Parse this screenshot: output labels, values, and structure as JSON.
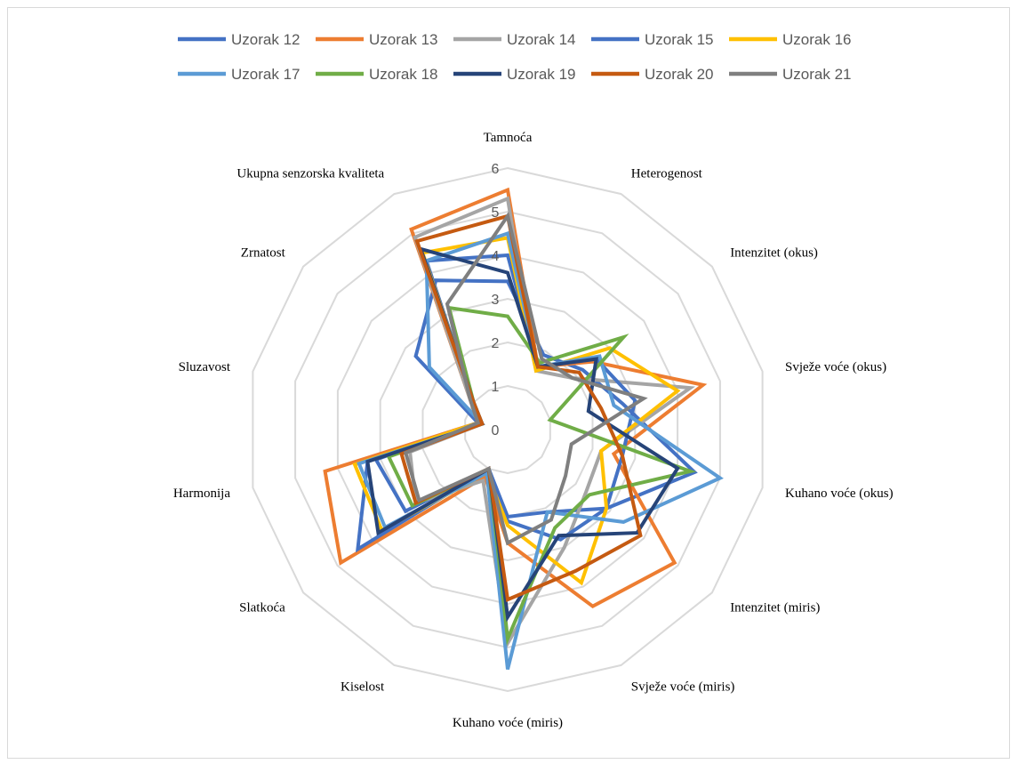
{
  "chart_data": {
    "type": "radar",
    "title": "",
    "categories": [
      "Tamnoća",
      "Heterogenost",
      "Intenzitet (okus)",
      "Svježe voće (okus)",
      "Kuhano voće (okus)",
      "Intenzitet (miris)",
      "Svježe voće (miris)",
      "Kuhano voće (miris)",
      "Kiselost",
      "Slatkoća",
      "Harmonija",
      "Sluzavost",
      "Zrnatost",
      "Ukupna senzorska kvaliteta"
    ],
    "rlim": [
      0,
      6
    ],
    "ticks": [
      "0",
      "1",
      "2",
      "3",
      "4",
      "5",
      "6"
    ],
    "grid": true,
    "legend": "top",
    "series": [
      {
        "name": "Uzorak 12",
        "color": "#4472C4",
        "values": [
          3.4,
          1.9,
          2.2,
          2.7,
          4.4,
          2.9,
          2.1,
          2.0,
          1.0,
          3.0,
          3.1,
          0.7,
          2.7,
          3.8
        ]
      },
      {
        "name": "Uzorak 13",
        "color": "#ED7D31",
        "values": [
          5.5,
          1.6,
          2.5,
          4.6,
          2.5,
          4.9,
          4.5,
          2.6,
          1.2,
          4.9,
          4.3,
          0.7,
          1.1,
          5.1
        ]
      },
      {
        "name": "Uzorak 14",
        "color": "#A5A5A5",
        "values": [
          5.3,
          1.5,
          1.9,
          4.3,
          2.2,
          2.3,
          3.0,
          4.9,
          1.3,
          2.7,
          2.3,
          0.6,
          1.1,
          4.9
        ]
      },
      {
        "name": "Uzorak 15",
        "color": "#4472C4",
        "values": [
          4.0,
          1.6,
          2.6,
          3.0,
          2.7,
          2.9,
          2.8,
          2.1,
          1.0,
          4.4,
          3.3,
          0.7,
          1.0,
          4.3
        ]
      },
      {
        "name": "Uzorak 16",
        "color": "#FFC000",
        "values": [
          4.4,
          1.5,
          3.0,
          4.0,
          2.2,
          2.9,
          3.9,
          2.2,
          1.1,
          3.7,
          3.6,
          0.7,
          1.0,
          4.5
        ]
      },
      {
        "name": "Uzorak 17",
        "color": "#5B9BD5",
        "values": [
          4.5,
          1.6,
          2.7,
          2.5,
          5.0,
          3.4,
          2.1,
          5.5,
          1.1,
          3.6,
          3.5,
          0.6,
          2.3,
          4.3
        ]
      },
      {
        "name": "Uzorak 18",
        "color": "#70AD47",
        "values": [
          2.6,
          1.7,
          3.4,
          1.0,
          4.3,
          2.4,
          2.5,
          4.8,
          1.0,
          2.8,
          2.8,
          0.6,
          1.0,
          3.1
        ]
      },
      {
        "name": "Uzorak 19",
        "color": "#264478",
        "values": [
          3.6,
          1.6,
          2.6,
          1.9,
          4.0,
          3.8,
          2.7,
          4.3,
          1.0,
          3.8,
          3.3,
          0.6,
          1.0,
          4.6
        ]
      },
      {
        "name": "Uzorak 20",
        "color": "#C55A11",
        "values": [
          4.9,
          1.6,
          2.1,
          2.2,
          2.7,
          3.9,
          3.6,
          3.9,
          1.0,
          2.7,
          2.5,
          0.6,
          1.0,
          4.8
        ]
      },
      {
        "name": "Uzorak 21",
        "color": "#7F7F7F",
        "values": [
          4.9,
          1.8,
          1.9,
          3.2,
          1.5,
          1.7,
          2.3,
          2.6,
          1.0,
          2.6,
          2.4,
          0.7,
          1.1,
          3.2
        ]
      }
    ]
  }
}
